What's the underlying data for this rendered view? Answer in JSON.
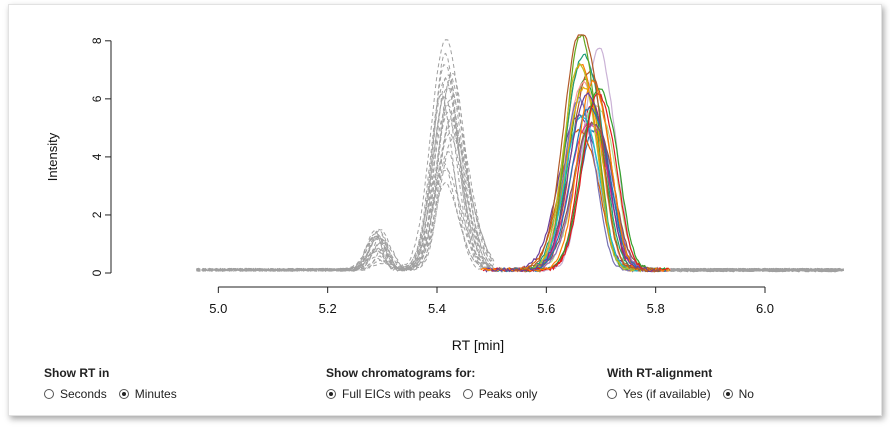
{
  "chart_data": {
    "type": "line",
    "xlabel": "RT [min]",
    "ylabel": "Intensity",
    "xlim": [
      4.95,
      6.15
    ],
    "ylim": [
      0,
      8.2
    ],
    "x_ticks": [
      "5.0",
      "5.2",
      "5.4",
      "5.6",
      "5.8",
      "6.0"
    ],
    "y_ticks": [
      "0",
      "2",
      "4",
      "6",
      "8"
    ],
    "grid": false,
    "legend": "none",
    "colors": {
      "background_eic": "#a0a0a0",
      "peaks": [
        "#1f78b4",
        "#33a02c",
        "#e31a1c",
        "#ff7f00",
        "#6a3d9a",
        "#b15928",
        "#a6cee3",
        "#b2df8a",
        "#fb9a99",
        "#cab2d6",
        "#1b9e77",
        "#d95f02",
        "#7570b3",
        "#e7298a",
        "#66a61e",
        "#e6ab02",
        "#17becf",
        "#9467bd",
        "#8c564b",
        "#bcbd22"
      ]
    },
    "background_peaks": [
      {
        "center": 5.295,
        "height": 1.5,
        "width": 0.015
      },
      {
        "center": 5.415,
        "height": 5.6,
        "width": 0.02
      },
      {
        "center": 5.43,
        "height": 4.3,
        "width": 0.025
      }
    ],
    "main_peak": {
      "center_range": [
        5.655,
        5.695
      ],
      "height_range": [
        4.6,
        8.2
      ],
      "width": 0.028
    }
  },
  "controls": {
    "rt_unit": {
      "title": "Show RT in",
      "options": [
        "Seconds",
        "Minutes"
      ],
      "selected": "Minutes"
    },
    "chromatograms": {
      "title": "Show chromatograms for:",
      "options": [
        "Full EICs with peaks",
        "Peaks only"
      ],
      "selected": "Full EICs with peaks"
    },
    "alignment": {
      "title": "With RT-alignment",
      "options": [
        "Yes (if available)",
        "No"
      ],
      "selected": "No"
    }
  }
}
